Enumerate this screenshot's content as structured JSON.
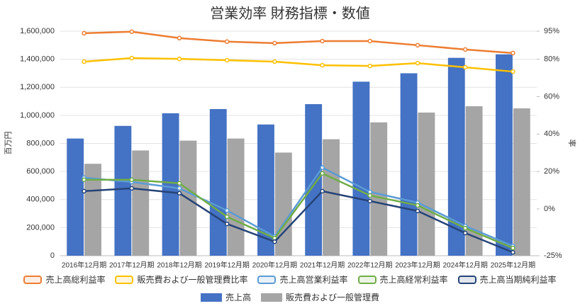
{
  "chart_data": {
    "type": "bar",
    "title": "営業効率 財務指標・数値",
    "y_label": "百万円",
    "y2_label": "率",
    "categories": [
      "2016年12月期",
      "2017年12月期",
      "2018年12月期",
      "2019年12月期",
      "2020年12月期",
      "2021年12月期",
      "2022年12月期",
      "2023年12月期",
      "2024年12月期",
      "2025年12月期"
    ],
    "ylim": [
      0,
      1600000
    ],
    "yticks": [
      {
        "value": 0,
        "label": "0"
      },
      {
        "value": 200000,
        "label": "200,000"
      },
      {
        "value": 400000,
        "label": "400,000"
      },
      {
        "value": 600000,
        "label": "600,000"
      },
      {
        "value": 800000,
        "label": "800,000"
      },
      {
        "value": 1000000,
        "label": "1,000,000"
      },
      {
        "value": 1200000,
        "label": "1,200,000"
      },
      {
        "value": 1400000,
        "label": "1,400,000"
      },
      {
        "value": 1600000,
        "label": "1,600,000"
      }
    ],
    "y2lim": [
      -25,
      95
    ],
    "y2ticks": [
      {
        "value": -25,
        "label": "-25%"
      },
      {
        "value": 0,
        "label": "0%"
      },
      {
        "value": 20,
        "label": "20%"
      },
      {
        "value": 40,
        "label": "40%"
      },
      {
        "value": 60,
        "label": "60%"
      },
      {
        "value": 80,
        "label": "80%"
      },
      {
        "value": 95,
        "label": "95%"
      }
    ],
    "grid": true,
    "series": [
      {
        "name": "売上高総利益率",
        "type": "line",
        "axis": "y2",
        "color": "#ed7d31",
        "values": [
          93.9,
          94.7,
          91.3,
          89.4,
          88.6,
          89.7,
          89.7,
          87.5,
          85.2,
          83.3
        ]
      },
      {
        "name": "販売費および一般管理費比率",
        "type": "line",
        "axis": "y2",
        "color": "#ffc000",
        "values": [
          78.7,
          80.6,
          80.2,
          79.5,
          78.7,
          76.8,
          76.4,
          77.9,
          75.7,
          73.4
        ]
      },
      {
        "name": "売上高営業利益率",
        "type": "line",
        "axis": "y2",
        "color": "#5b9bd5",
        "values": [
          16.7,
          14.4,
          11.0,
          -0.8,
          -14.8,
          22.1,
          9.1,
          3.4,
          -9.1,
          -19.8
        ]
      },
      {
        "name": "売上高経常利益率",
        "type": "line",
        "axis": "y2",
        "color": "#70ad47",
        "values": [
          15.6,
          15.6,
          13.7,
          -4.2,
          -15.6,
          19.0,
          7.2,
          1.9,
          -10.3,
          -20.9
        ]
      },
      {
        "name": "売上高当期純利益率",
        "type": "line",
        "axis": "y2",
        "color": "#264478",
        "values": [
          9.5,
          11.0,
          8.4,
          -8.0,
          -17.5,
          9.5,
          4.2,
          -1.1,
          -12.9,
          -23.2
        ]
      },
      {
        "name": "売上高",
        "type": "bar",
        "color": "#4472c4",
        "values": [
          835000,
          925000,
          1015000,
          1045000,
          935000,
          1080000,
          1240000,
          1300000,
          1410000,
          1435000
        ]
      },
      {
        "name": "販売費および一般管理費",
        "type": "bar",
        "color": "#a5a5a5",
        "values": [
          655000,
          750000,
          820000,
          835000,
          735000,
          830000,
          950000,
          1020000,
          1065000,
          1050000
        ]
      }
    ]
  }
}
